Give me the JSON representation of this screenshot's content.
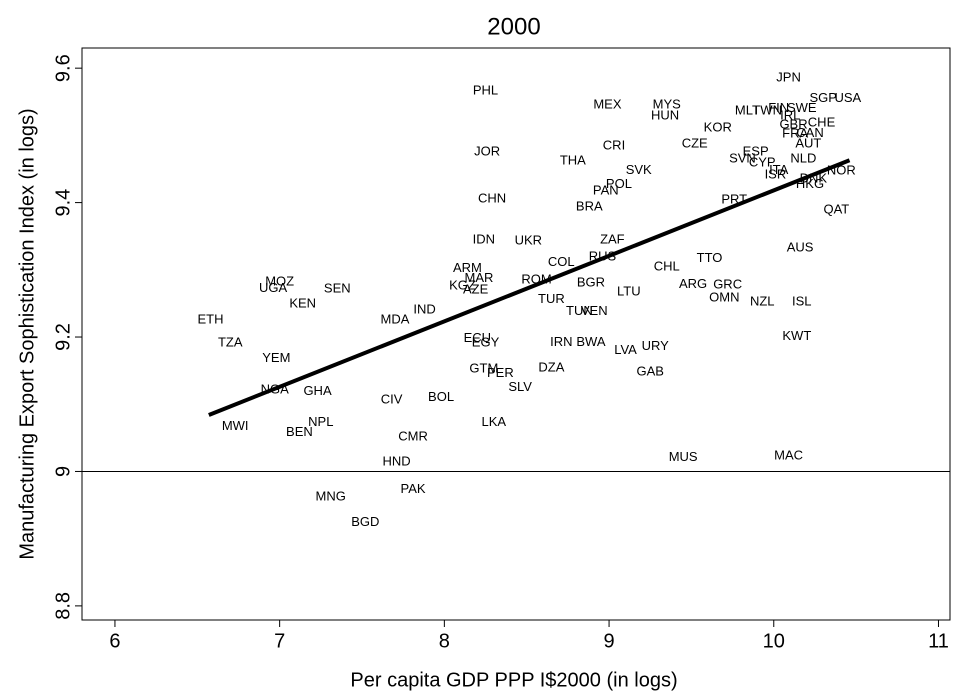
{
  "chart_data": {
    "type": "scatter",
    "title": "2000",
    "x_label": "Per capita GDP PPP I$2000 (in logs)",
    "y_label": "Manufacturing Export Sophistication Index (in logs)",
    "labels": [
      "JPN",
      "SGP",
      "USA",
      "PHL",
      "MEX",
      "MYS",
      "HUN",
      "MLT",
      "TWN",
      "FIN",
      "SWE",
      "IRL",
      "KOR",
      "GBR",
      "CHE",
      "FRA",
      "CAN",
      "AUT",
      "CZE",
      "CRI",
      "JOR",
      "ESP",
      "THA",
      "SVN",
      "NLD",
      "CYP",
      "SVK",
      "ITA",
      "ISR",
      "NOR",
      "DNK",
      "HKG",
      "POL",
      "PAN",
      "CHN",
      "BRA",
      "PRT",
      "QAT",
      "IDN",
      "UKR",
      "ZAF",
      "AUS",
      "COL",
      "RUS",
      "TTO",
      "CHL",
      "ARM",
      "MOZ",
      "UGA",
      "SEN",
      "MAR",
      "KGZ",
      "AZE",
      "ROM",
      "BGR",
      "ARG",
      "GRC",
      "LTU",
      "KEN",
      "OMN",
      "TUR",
      "NZL",
      "ISL",
      "IND",
      "TUN",
      "VEN",
      "MDA",
      "ETH",
      "KWT",
      "ECU",
      "EGY",
      "IRN",
      "BWA",
      "TZA",
      "URY",
      "LVA",
      "YEM",
      "GTM",
      "PER",
      "DZA",
      "GAB",
      "SLV",
      "NGA",
      "GHA",
      "CIV",
      "BOL",
      "NPL",
      "MWI",
      "BEN",
      "LKA",
      "CMR",
      "MUS",
      "MAC",
      "HND",
      "PAK",
      "MNG",
      "BGD"
    ],
    "x": [
      10.09,
      10.3,
      10.45,
      8.25,
      8.99,
      9.35,
      9.34,
      9.84,
      9.96,
      10.03,
      10.17,
      10.1,
      9.66,
      10.12,
      10.29,
      10.13,
      10.22,
      10.21,
      9.52,
      9.03,
      8.26,
      9.89,
      8.78,
      9.81,
      10.18,
      9.93,
      9.18,
      10.03,
      10.01,
      10.41,
      10.24,
      10.22,
      9.06,
      8.98,
      8.29,
      8.88,
      9.76,
      10.38,
      8.24,
      8.51,
      9.02,
      10.16,
      8.71,
      8.96,
      9.61,
      9.35,
      8.14,
      7.0,
      6.96,
      7.35,
      8.21,
      8.11,
      8.19,
      8.56,
      8.89,
      9.51,
      9.72,
      9.12,
      7.14,
      9.7,
      8.65,
      9.93,
      10.17,
      7.88,
      8.82,
      8.91,
      7.7,
      6.58,
      10.14,
      8.2,
      8.25,
      8.71,
      8.89,
      6.7,
      9.28,
      9.1,
      6.98,
      8.24,
      8.34,
      8.65,
      9.25,
      8.46,
      6.97,
      7.23,
      7.68,
      7.98,
      7.25,
      6.73,
      7.12,
      8.3,
      7.81,
      9.45,
      10.09,
      7.71,
      7.81,
      7.31,
      7.52
    ],
    "values": [
      9.585,
      9.555,
      9.555,
      9.566,
      9.545,
      9.545,
      9.529,
      9.536,
      9.536,
      9.54,
      9.54,
      9.529,
      9.511,
      9.515,
      9.518,
      9.502,
      9.503,
      9.487,
      9.487,
      9.484,
      9.475,
      9.475,
      9.462,
      9.465,
      9.465,
      9.459,
      9.448,
      9.448,
      9.441,
      9.447,
      9.435,
      9.427,
      9.427,
      9.417,
      9.405,
      9.393,
      9.404,
      9.389,
      9.344,
      9.343,
      9.344,
      9.332,
      9.311,
      9.319,
      9.317,
      9.304,
      9.302,
      9.282,
      9.272,
      9.271,
      9.287,
      9.276,
      9.27,
      9.285,
      9.28,
      9.278,
      9.277,
      9.267,
      9.249,
      9.258,
      9.256,
      9.252,
      9.252,
      9.24,
      9.238,
      9.238,
      9.225,
      9.225,
      9.201,
      9.198,
      9.191,
      9.192,
      9.192,
      9.191,
      9.186,
      9.18,
      9.168,
      9.152,
      9.146,
      9.154,
      9.148,
      9.125,
      9.121,
      9.119,
      9.106,
      9.11,
      9.073,
      9.067,
      9.058,
      9.073,
      9.051,
      9.021,
      9.023,
      9.014,
      8.973,
      8.962,
      8.924
    ],
    "fit_line": {
      "x": [
        6.57,
        10.46
      ],
      "values": [
        9.084,
        9.463
      ]
    },
    "hline": 9,
    "xlim": [
      5.8,
      11.07
    ],
    "ylim": [
      8.779,
      9.63
    ],
    "xticks": [
      6,
      7,
      8,
      9,
      10,
      11
    ],
    "yticks": [
      8.8,
      9,
      9.2,
      9.4,
      9.6
    ]
  }
}
